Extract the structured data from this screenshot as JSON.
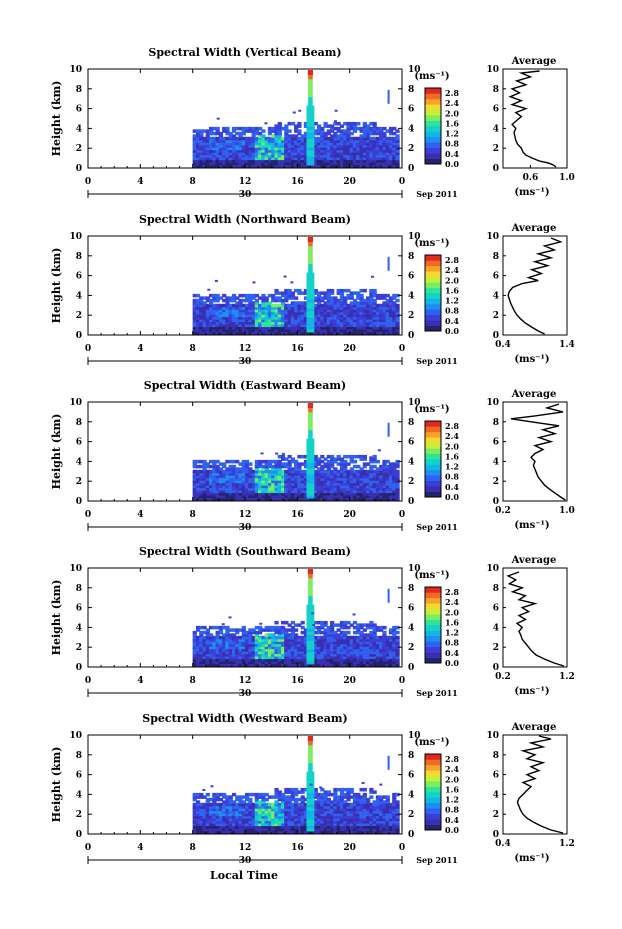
{
  "figure": {
    "xlabel_bottom": "Local Time",
    "date_label": "Sep 2011",
    "day_label": "30",
    "colorbar_unit": "(ms⁻¹)",
    "avg_title": "Average",
    "avg_unit": "(ms⁻¹)"
  },
  "colors": {
    "scale": [
      "#24246e",
      "#3a2fb3",
      "#3b3fd6",
      "#2f62ee",
      "#1c8fef",
      "#12b6e6",
      "#14d2c8",
      "#2ee39a",
      "#7ced5e",
      "#c8ee3a",
      "#f4d930",
      "#f7a22a",
      "#ef6a26",
      "#e02a20"
    ]
  },
  "chart_data": [
    {
      "type": "heatmap",
      "title": "Spectral Width (Vertical Beam)",
      "ylabel": "Height (km)",
      "xlim": [
        0,
        24
      ],
      "ylim": [
        0,
        10
      ],
      "xticks": [
        "0",
        "4",
        "8",
        "12",
        "16",
        "20",
        "0"
      ],
      "yticks": [
        "0",
        "2",
        "4",
        "6",
        "8",
        "10"
      ],
      "colorbar": {
        "ticks": [
          "0.0",
          "0.4",
          "0.8",
          "1.2",
          "1.6",
          "2.0",
          "2.4",
          "2.8"
        ],
        "range": [
          0,
          3
        ]
      },
      "average_profile": {
        "xlim": [
          0.3,
          1.0
        ],
        "xticks": [
          "0.6",
          "1.0"
        ],
        "points": [
          [
            0.88,
            0.1
          ],
          [
            0.85,
            0.3
          ],
          [
            0.8,
            0.5
          ],
          [
            0.7,
            0.7
          ],
          [
            0.62,
            1.0
          ],
          [
            0.55,
            1.3
          ],
          [
            0.52,
            1.6
          ],
          [
            0.5,
            2.0
          ],
          [
            0.46,
            2.4
          ],
          [
            0.44,
            2.8
          ],
          [
            0.43,
            3.2
          ],
          [
            0.42,
            3.6
          ],
          [
            0.44,
            4.0
          ],
          [
            0.4,
            4.4
          ],
          [
            0.45,
            4.8
          ],
          [
            0.5,
            5.2
          ],
          [
            0.44,
            5.6
          ],
          [
            0.55,
            6.0
          ],
          [
            0.4,
            6.4
          ],
          [
            0.5,
            6.8
          ],
          [
            0.38,
            7.2
          ],
          [
            0.48,
            7.6
          ],
          [
            0.4,
            8.0
          ],
          [
            0.55,
            8.4
          ],
          [
            0.45,
            8.8
          ],
          [
            0.6,
            9.2
          ],
          [
            0.5,
            9.6
          ],
          [
            0.7,
            9.8
          ]
        ]
      }
    },
    {
      "type": "heatmap",
      "title": "Spectral Width (Northward Beam)",
      "ylabel": "Height (km)",
      "xlim": [
        0,
        24
      ],
      "ylim": [
        0,
        10
      ],
      "xticks": [
        "0",
        "4",
        "8",
        "12",
        "16",
        "20",
        "0"
      ],
      "yticks": [
        "0",
        "2",
        "4",
        "6",
        "8",
        "10"
      ],
      "colorbar": {
        "ticks": [
          "0.0",
          "0.4",
          "0.8",
          "1.2",
          "1.6",
          "2.0",
          "2.4",
          "2.8"
        ],
        "range": [
          0,
          3
        ]
      },
      "average_profile": {
        "xlim": [
          0.4,
          1.4
        ],
        "xticks": [
          "0.4",
          "1.4"
        ],
        "points": [
          [
            1.05,
            0.1
          ],
          [
            0.95,
            0.4
          ],
          [
            0.85,
            0.8
          ],
          [
            0.75,
            1.2
          ],
          [
            0.68,
            1.6
          ],
          [
            0.62,
            2.0
          ],
          [
            0.58,
            2.4
          ],
          [
            0.55,
            2.8
          ],
          [
            0.52,
            3.2
          ],
          [
            0.5,
            3.6
          ],
          [
            0.48,
            4.0
          ],
          [
            0.5,
            4.4
          ],
          [
            0.55,
            4.8
          ],
          [
            0.7,
            5.2
          ],
          [
            0.95,
            5.5
          ],
          [
            0.8,
            5.8
          ],
          [
            1.0,
            6.2
          ],
          [
            0.85,
            6.6
          ],
          [
            1.1,
            7.0
          ],
          [
            0.9,
            7.4
          ],
          [
            1.15,
            7.8
          ],
          [
            0.95,
            8.2
          ],
          [
            1.2,
            8.6
          ],
          [
            1.05,
            9.0
          ],
          [
            1.3,
            9.4
          ],
          [
            1.15,
            9.8
          ]
        ]
      }
    },
    {
      "type": "heatmap",
      "title": "Spectral Width (Eastward Beam)",
      "ylabel": "Height (km)",
      "xlim": [
        0,
        24
      ],
      "ylim": [
        0,
        10
      ],
      "xticks": [
        "0",
        "4",
        "8",
        "12",
        "16",
        "20",
        "0"
      ],
      "yticks": [
        "0",
        "2",
        "4",
        "6",
        "8",
        "10"
      ],
      "colorbar": {
        "ticks": [
          "0.0",
          "0.4",
          "0.8",
          "1.2",
          "1.6",
          "2.0",
          "2.4",
          "2.8"
        ],
        "range": [
          0,
          3
        ]
      },
      "average_profile": {
        "xlim": [
          0.2,
          1.0
        ],
        "xticks": [
          "0.2",
          "1.0"
        ],
        "points": [
          [
            0.98,
            0.1
          ],
          [
            0.92,
            0.4
          ],
          [
            0.85,
            0.8
          ],
          [
            0.78,
            1.2
          ],
          [
            0.72,
            1.6
          ],
          [
            0.68,
            2.0
          ],
          [
            0.64,
            2.4
          ],
          [
            0.62,
            2.8
          ],
          [
            0.6,
            3.2
          ],
          [
            0.58,
            3.6
          ],
          [
            0.6,
            4.0
          ],
          [
            0.55,
            4.4
          ],
          [
            0.6,
            4.8
          ],
          [
            0.7,
            5.2
          ],
          [
            0.6,
            5.6
          ],
          [
            0.8,
            6.0
          ],
          [
            0.65,
            6.4
          ],
          [
            0.85,
            6.8
          ],
          [
            0.7,
            7.2
          ],
          [
            0.9,
            7.6
          ],
          [
            0.55,
            8.0
          ],
          [
            0.3,
            8.3
          ],
          [
            0.6,
            8.6
          ],
          [
            0.95,
            9.0
          ],
          [
            0.75,
            9.4
          ],
          [
            0.9,
            9.8
          ]
        ]
      }
    },
    {
      "type": "heatmap",
      "title": "Spectral Width (Southward Beam)",
      "ylabel": "Height (km)",
      "xlim": [
        0,
        24
      ],
      "ylim": [
        0,
        10
      ],
      "xticks": [
        "0",
        "4",
        "8",
        "12",
        "16",
        "20",
        "0"
      ],
      "yticks": [
        "0",
        "2",
        "4",
        "6",
        "8",
        "10"
      ],
      "colorbar": {
        "ticks": [
          "0.0",
          "0.4",
          "0.8",
          "1.2",
          "1.6",
          "2.0",
          "2.4",
          "2.8"
        ],
        "range": [
          0,
          3
        ]
      },
      "average_profile": {
        "xlim": [
          0.2,
          1.2
        ],
        "xticks": [
          "0.2",
          "1.2"
        ],
        "points": [
          [
            1.15,
            0.1
          ],
          [
            1.0,
            0.4
          ],
          [
            0.85,
            0.8
          ],
          [
            0.72,
            1.2
          ],
          [
            0.65,
            1.6
          ],
          [
            0.6,
            2.0
          ],
          [
            0.55,
            2.4
          ],
          [
            0.5,
            2.8
          ],
          [
            0.48,
            3.2
          ],
          [
            0.45,
            3.6
          ],
          [
            0.5,
            4.0
          ],
          [
            0.42,
            4.4
          ],
          [
            0.55,
            4.8
          ],
          [
            0.45,
            5.2
          ],
          [
            0.6,
            5.6
          ],
          [
            0.5,
            6.0
          ],
          [
            0.7,
            6.4
          ],
          [
            0.45,
            6.8
          ],
          [
            0.55,
            7.2
          ],
          [
            0.35,
            7.6
          ],
          [
            0.5,
            8.0
          ],
          [
            0.3,
            8.4
          ],
          [
            0.4,
            8.8
          ],
          [
            0.28,
            9.2
          ],
          [
            0.45,
            9.6
          ]
        ]
      }
    },
    {
      "type": "heatmap",
      "title": "Spectral Width (Westward Beam)",
      "ylabel": "Height (km)",
      "xlim": [
        0,
        24
      ],
      "ylim": [
        0,
        10
      ],
      "xticks": [
        "0",
        "4",
        "8",
        "12",
        "16",
        "20",
        "0"
      ],
      "yticks": [
        "0",
        "2",
        "4",
        "6",
        "8",
        "10"
      ],
      "colorbar": {
        "ticks": [
          "0.0",
          "0.4",
          "0.8",
          "1.2",
          "1.6",
          "2.0",
          "2.4",
          "2.8"
        ],
        "range": [
          0,
          3
        ]
      },
      "average_profile": {
        "xlim": [
          0.4,
          1.2
        ],
        "xticks": [
          "0.4",
          "1.2"
        ],
        "points": [
          [
            1.15,
            0.1
          ],
          [
            1.0,
            0.4
          ],
          [
            0.88,
            0.8
          ],
          [
            0.78,
            1.2
          ],
          [
            0.7,
            1.6
          ],
          [
            0.65,
            2.0
          ],
          [
            0.62,
            2.4
          ],
          [
            0.6,
            2.8
          ],
          [
            0.58,
            3.2
          ],
          [
            0.6,
            3.6
          ],
          [
            0.65,
            4.0
          ],
          [
            0.7,
            4.4
          ],
          [
            0.75,
            4.8
          ],
          [
            0.65,
            5.2
          ],
          [
            0.8,
            5.6
          ],
          [
            0.7,
            6.0
          ],
          [
            0.85,
            6.4
          ],
          [
            0.75,
            6.8
          ],
          [
            0.9,
            7.2
          ],
          [
            0.7,
            7.6
          ],
          [
            0.8,
            8.0
          ],
          [
            0.65,
            8.4
          ],
          [
            0.9,
            8.8
          ],
          [
            0.75,
            9.2
          ],
          [
            1.0,
            9.6
          ],
          [
            0.85,
            9.9
          ]
        ]
      }
    }
  ]
}
